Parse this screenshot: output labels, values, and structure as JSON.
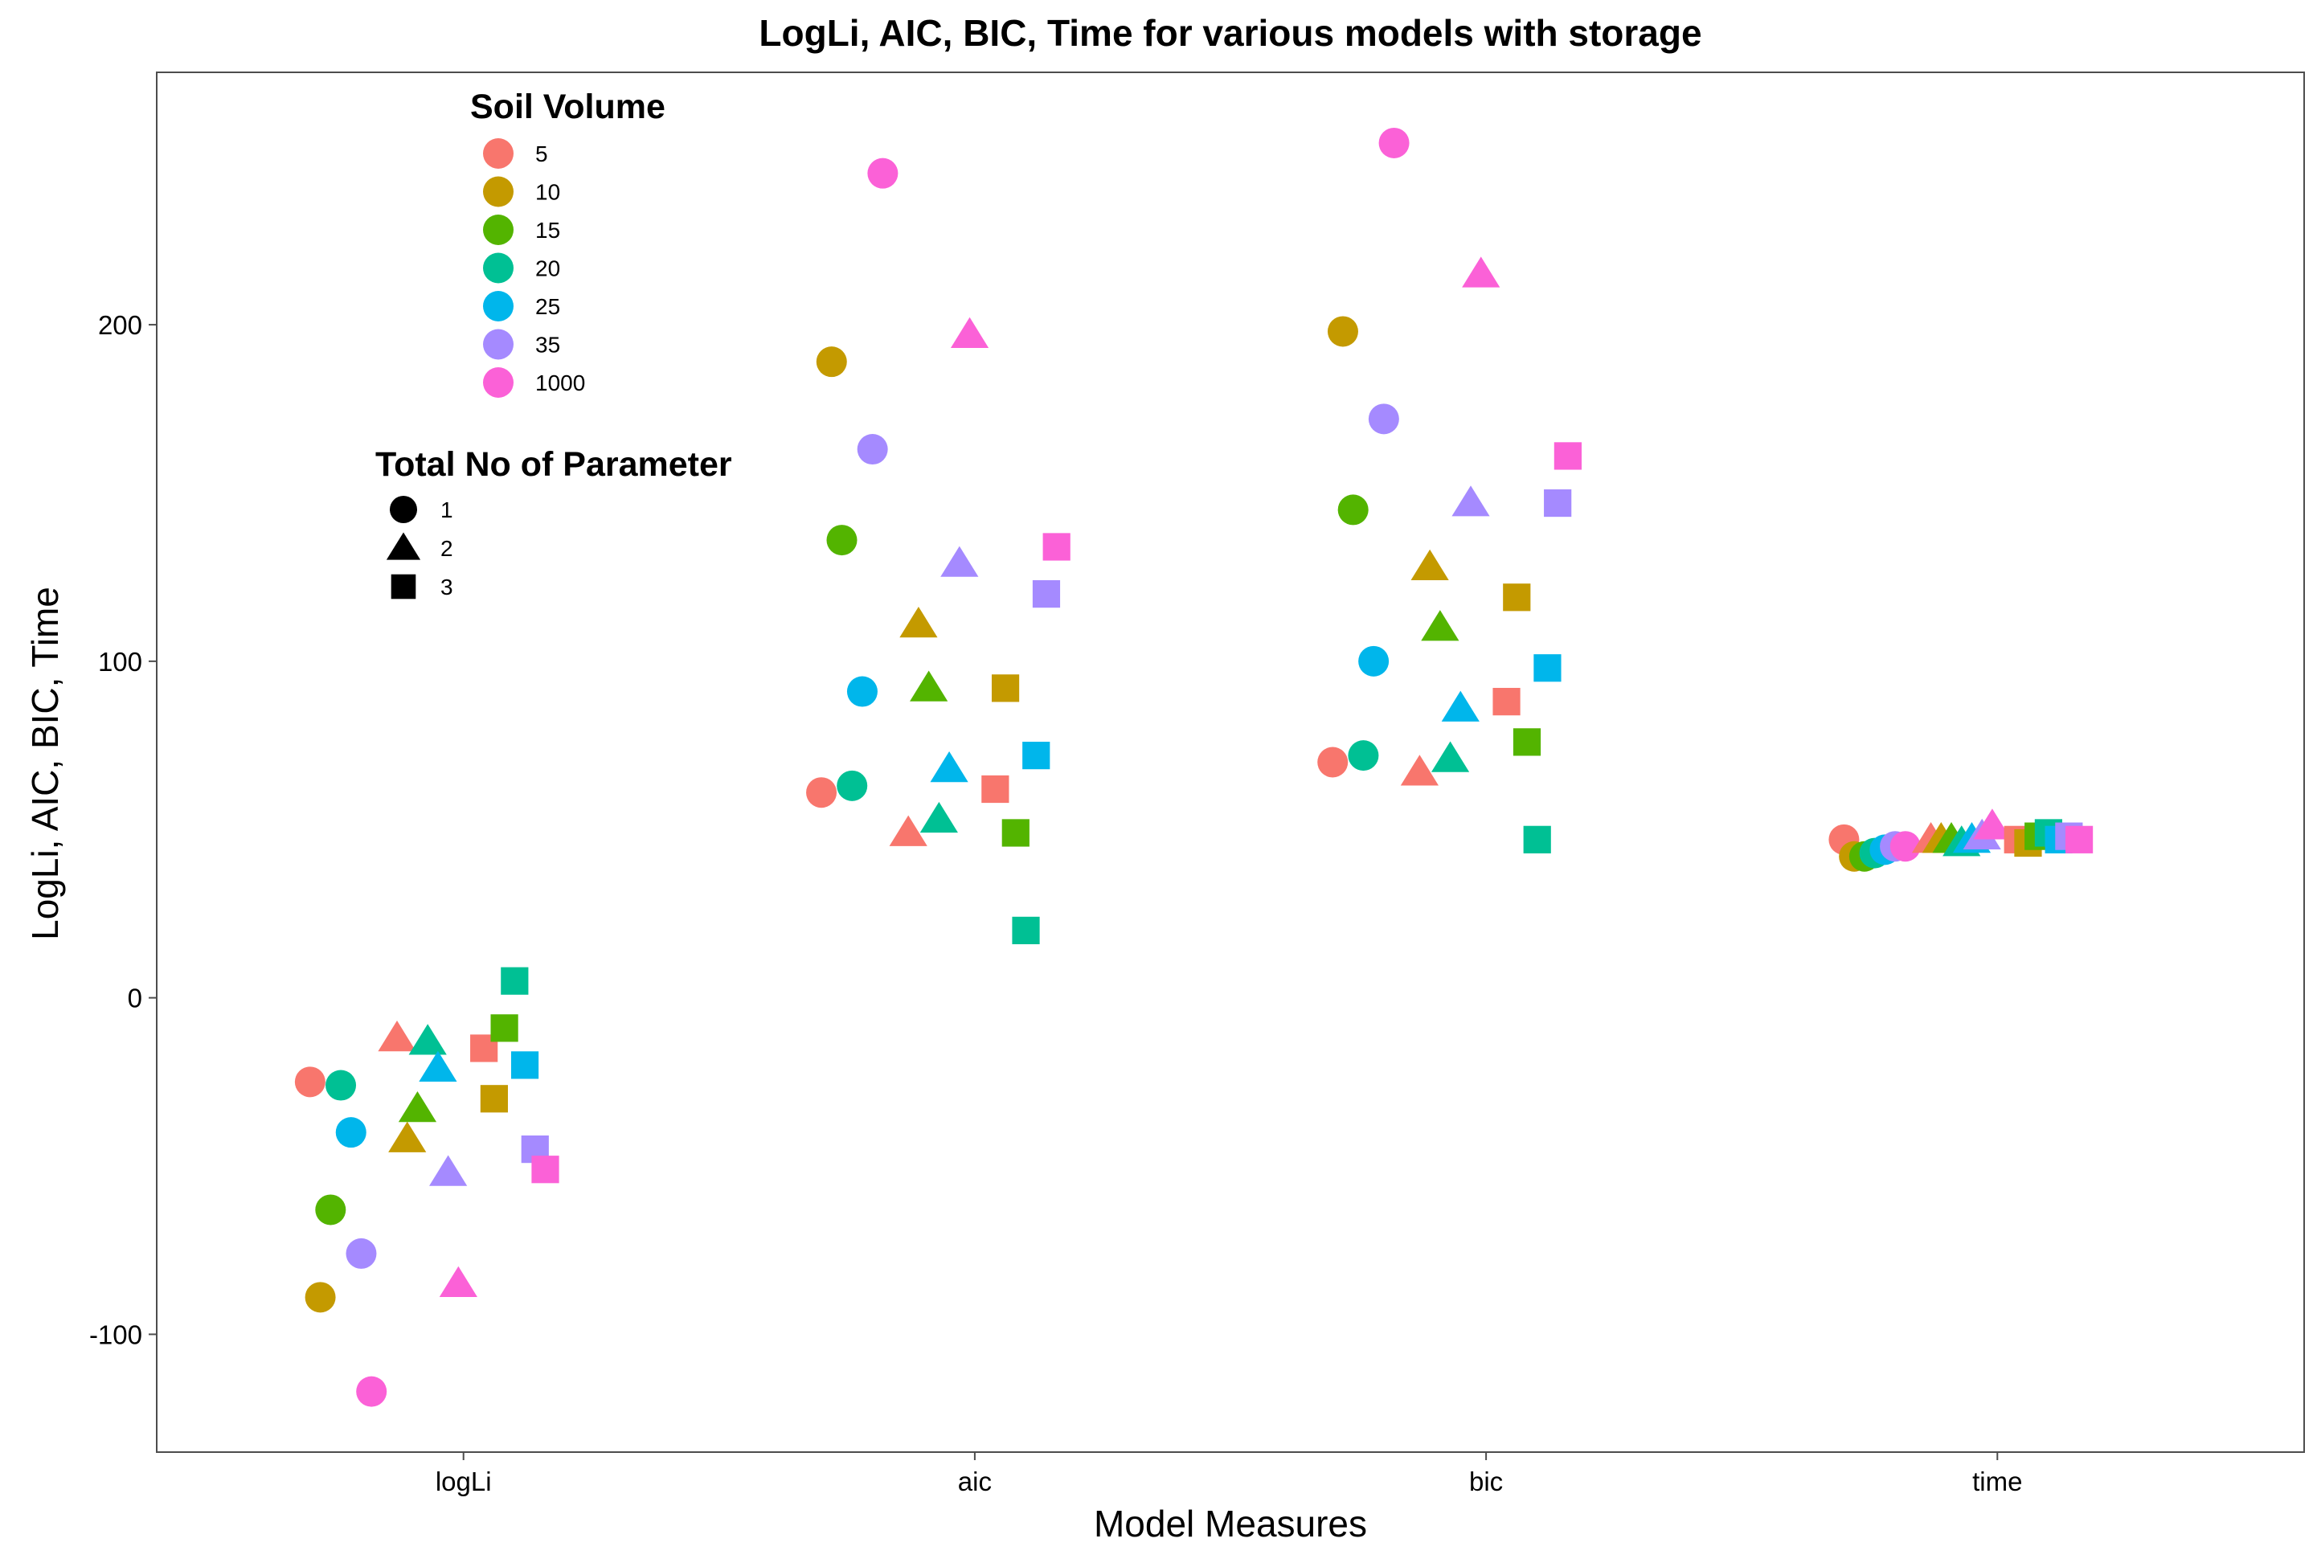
{
  "chart_data": {
    "type": "scatter",
    "title": "LogLi, AIC, BIC, Time for various models with storage",
    "xlabel": "Model Measures",
    "ylabel": "LogLi, AIC, BIC, Time",
    "categories": [
      "logLi",
      "aic",
      "bic",
      "time"
    ],
    "ylim": [
      -135,
      275
    ],
    "yticks": [
      -100,
      0,
      100,
      200
    ],
    "grid": false,
    "legend_color": {
      "title": "Soil Volume",
      "placement": "top-left",
      "entries": [
        {
          "label": "5",
          "color": "#F8766D"
        },
        {
          "label": "10",
          "color": "#C49A00"
        },
        {
          "label": "15",
          "color": "#53B400"
        },
        {
          "label": "20",
          "color": "#00C094"
        },
        {
          "label": "25",
          "color": "#00B6EB"
        },
        {
          "label": "35",
          "color": "#A58AFF"
        },
        {
          "label": "1000",
          "color": "#FB61D7"
        }
      ]
    },
    "legend_shape": {
      "title": "Total No of Parameter",
      "placement": "top-left",
      "entries": [
        {
          "label": "1",
          "shape": "circle"
        },
        {
          "label": "2",
          "shape": "triangle"
        },
        {
          "label": "3",
          "shape": "square"
        }
      ]
    },
    "series": [
      {
        "name": "logLi",
        "points": [
          {
            "x": 0.7,
            "y": -25,
            "soil": "5",
            "params": "1"
          },
          {
            "x": 0.72,
            "y": -89,
            "soil": "10",
            "params": "1"
          },
          {
            "x": 0.74,
            "y": -63,
            "soil": "15",
            "params": "1"
          },
          {
            "x": 0.76,
            "y": -26,
            "soil": "20",
            "params": "1"
          },
          {
            "x": 0.78,
            "y": -40,
            "soil": "25",
            "params": "1"
          },
          {
            "x": 0.8,
            "y": -76,
            "soil": "35",
            "params": "1"
          },
          {
            "x": 0.82,
            "y": -117,
            "soil": "1000",
            "params": "1"
          },
          {
            "x": 0.87,
            "y": -12,
            "soil": "5",
            "params": "2"
          },
          {
            "x": 0.89,
            "y": -42,
            "soil": "10",
            "params": "2"
          },
          {
            "x": 0.91,
            "y": -33,
            "soil": "15",
            "params": "2"
          },
          {
            "x": 0.93,
            "y": -13,
            "soil": "20",
            "params": "2"
          },
          {
            "x": 0.95,
            "y": -21,
            "soil": "25",
            "params": "2"
          },
          {
            "x": 0.97,
            "y": -52,
            "soil": "35",
            "params": "2"
          },
          {
            "x": 0.99,
            "y": -85,
            "soil": "1000",
            "params": "2"
          },
          {
            "x": 1.04,
            "y": -15,
            "soil": "5",
            "params": "3"
          },
          {
            "x": 1.06,
            "y": -30,
            "soil": "10",
            "params": "3"
          },
          {
            "x": 1.08,
            "y": -9,
            "soil": "15",
            "params": "3"
          },
          {
            "x": 1.1,
            "y": 5,
            "soil": "20",
            "params": "3"
          },
          {
            "x": 1.12,
            "y": -20,
            "soil": "25",
            "params": "3"
          },
          {
            "x": 1.14,
            "y": -45,
            "soil": "35",
            "params": "3"
          },
          {
            "x": 1.16,
            "y": -51,
            "soil": "1000",
            "params": "3"
          }
        ]
      },
      {
        "name": "aic",
        "points": [
          {
            "x": 1.7,
            "y": 61,
            "soil": "5",
            "params": "1"
          },
          {
            "x": 1.72,
            "y": 189,
            "soil": "10",
            "params": "1"
          },
          {
            "x": 1.74,
            "y": 136,
            "soil": "15",
            "params": "1"
          },
          {
            "x": 1.76,
            "y": 63,
            "soil": "20",
            "params": "1"
          },
          {
            "x": 1.78,
            "y": 91,
            "soil": "25",
            "params": "1"
          },
          {
            "x": 1.8,
            "y": 163,
            "soil": "35",
            "params": "1"
          },
          {
            "x": 1.82,
            "y": 245,
            "soil": "1000",
            "params": "1"
          },
          {
            "x": 1.87,
            "y": 49,
            "soil": "5",
            "params": "2"
          },
          {
            "x": 1.89,
            "y": 111,
            "soil": "10",
            "params": "2"
          },
          {
            "x": 1.91,
            "y": 92,
            "soil": "15",
            "params": "2"
          },
          {
            "x": 1.93,
            "y": 53,
            "soil": "20",
            "params": "2"
          },
          {
            "x": 1.95,
            "y": 68,
            "soil": "25",
            "params": "2"
          },
          {
            "x": 1.97,
            "y": 129,
            "soil": "35",
            "params": "2"
          },
          {
            "x": 1.99,
            "y": 197,
            "soil": "1000",
            "params": "2"
          },
          {
            "x": 2.04,
            "y": 62,
            "soil": "5",
            "params": "3"
          },
          {
            "x": 2.06,
            "y": 92,
            "soil": "10",
            "params": "3"
          },
          {
            "x": 2.08,
            "y": 49,
            "soil": "15",
            "params": "3"
          },
          {
            "x": 2.1,
            "y": 20,
            "soil": "20",
            "params": "3"
          },
          {
            "x": 2.12,
            "y": 72,
            "soil": "25",
            "params": "3"
          },
          {
            "x": 2.14,
            "y": 120,
            "soil": "35",
            "params": "3"
          },
          {
            "x": 2.16,
            "y": 134,
            "soil": "1000",
            "params": "3"
          }
        ]
      },
      {
        "name": "bic",
        "points": [
          {
            "x": 2.7,
            "y": 70,
            "soil": "5",
            "params": "1"
          },
          {
            "x": 2.72,
            "y": 198,
            "soil": "10",
            "params": "1"
          },
          {
            "x": 2.74,
            "y": 145,
            "soil": "15",
            "params": "1"
          },
          {
            "x": 2.76,
            "y": 72,
            "soil": "20",
            "params": "1"
          },
          {
            "x": 2.78,
            "y": 100,
            "soil": "25",
            "params": "1"
          },
          {
            "x": 2.8,
            "y": 172,
            "soil": "35",
            "params": "1"
          },
          {
            "x": 2.82,
            "y": 254,
            "soil": "1000",
            "params": "1"
          },
          {
            "x": 2.87,
            "y": 67,
            "soil": "5",
            "params": "2"
          },
          {
            "x": 2.89,
            "y": 128,
            "soil": "10",
            "params": "2"
          },
          {
            "x": 2.91,
            "y": 110,
            "soil": "15",
            "params": "2"
          },
          {
            "x": 2.93,
            "y": 71,
            "soil": "20",
            "params": "2"
          },
          {
            "x": 2.95,
            "y": 86,
            "soil": "25",
            "params": "2"
          },
          {
            "x": 2.97,
            "y": 147,
            "soil": "35",
            "params": "2"
          },
          {
            "x": 2.99,
            "y": 215,
            "soil": "1000",
            "params": "2"
          },
          {
            "x": 3.04,
            "y": 88,
            "soil": "5",
            "params": "3"
          },
          {
            "x": 3.06,
            "y": 119,
            "soil": "10",
            "params": "3"
          },
          {
            "x": 3.08,
            "y": 76,
            "soil": "15",
            "params": "3"
          },
          {
            "x": 3.1,
            "y": 47,
            "soil": "20",
            "params": "3"
          },
          {
            "x": 3.12,
            "y": 98,
            "soil": "25",
            "params": "3"
          },
          {
            "x": 3.14,
            "y": 147,
            "soil": "35",
            "params": "3"
          },
          {
            "x": 3.16,
            "y": 161,
            "soil": "1000",
            "params": "3"
          }
        ]
      },
      {
        "name": "time",
        "points": [
          {
            "x": 3.7,
            "y": 47,
            "soil": "5",
            "params": "1"
          },
          {
            "x": 3.72,
            "y": 42,
            "soil": "10",
            "params": "1"
          },
          {
            "x": 3.74,
            "y": 42,
            "soil": "15",
            "params": "1"
          },
          {
            "x": 3.76,
            "y": 43,
            "soil": "20",
            "params": "1"
          },
          {
            "x": 3.78,
            "y": 44,
            "soil": "25",
            "params": "1"
          },
          {
            "x": 3.8,
            "y": 45,
            "soil": "35",
            "params": "1"
          },
          {
            "x": 3.82,
            "y": 45,
            "soil": "1000",
            "params": "1"
          },
          {
            "x": 3.87,
            "y": 47,
            "soil": "5",
            "params": "2"
          },
          {
            "x": 3.89,
            "y": 47,
            "soil": "10",
            "params": "2"
          },
          {
            "x": 3.91,
            "y": 47,
            "soil": "15",
            "params": "2"
          },
          {
            "x": 3.93,
            "y": 46,
            "soil": "20",
            "params": "2"
          },
          {
            "x": 3.95,
            "y": 47,
            "soil": "25",
            "params": "2"
          },
          {
            "x": 3.97,
            "y": 48,
            "soil": "35",
            "params": "2"
          },
          {
            "x": 3.99,
            "y": 51,
            "soil": "1000",
            "params": "2"
          },
          {
            "x": 4.04,
            "y": 47,
            "soil": "5",
            "params": "3"
          },
          {
            "x": 4.06,
            "y": 46,
            "soil": "10",
            "params": "3"
          },
          {
            "x": 4.08,
            "y": 48,
            "soil": "15",
            "params": "3"
          },
          {
            "x": 4.1,
            "y": 49,
            "soil": "20",
            "params": "3"
          },
          {
            "x": 4.12,
            "y": 47,
            "soil": "25",
            "params": "3"
          },
          {
            "x": 4.14,
            "y": 48,
            "soil": "35",
            "params": "3"
          },
          {
            "x": 4.16,
            "y": 47,
            "soil": "1000",
            "params": "3"
          }
        ]
      }
    ]
  }
}
